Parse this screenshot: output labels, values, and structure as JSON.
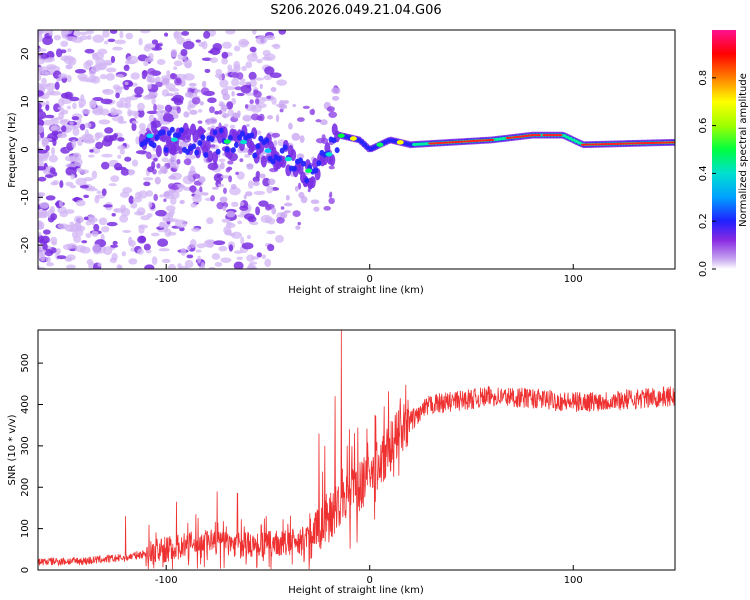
{
  "title": "S206.2026.049.21.04.G06",
  "chart_data": [
    {
      "type": "heatmap",
      "xlabel": "Height of straight line (km)",
      "ylabel": "Frequency (Hz)",
      "xlim": [
        -163,
        150
      ],
      "ylim": [
        -25,
        25
      ],
      "xticks": [
        -100,
        0,
        100
      ],
      "yticks": [
        -20,
        -10,
        0,
        10,
        20
      ],
      "colorbar": {
        "label": "Normalized spectral amplitude",
        "range": [
          0.0,
          1.0
        ],
        "ticks": [
          0.0,
          0.2,
          0.4,
          0.6,
          0.8
        ],
        "colors": [
          "#ffffff",
          "#c8a8f0",
          "#8a2be2",
          "#2020ff",
          "#00a0ff",
          "#00e0d0",
          "#00ff40",
          "#a0ff00",
          "#ffff00",
          "#ff8000",
          "#ff0000",
          "#ff1090"
        ]
      },
      "ridge": [
        {
          "x": -110,
          "f": 3.0
        },
        {
          "x": -95,
          "f": 2.0
        },
        {
          "x": -80,
          "f": 1.0
        },
        {
          "x": -65,
          "f": 2.0
        },
        {
          "x": -55,
          "f": 0.5
        },
        {
          "x": -45,
          "f": -1.0
        },
        {
          "x": -35,
          "f": -3.0
        },
        {
          "x": -28,
          "f": -5.0
        },
        {
          "x": -20,
          "f": -1.0
        },
        {
          "x": -15,
          "f": 3.0
        },
        {
          "x": -5,
          "f": 2.0
        },
        {
          "x": 0,
          "f": 0.0
        },
        {
          "x": 10,
          "f": 2.0
        },
        {
          "x": 20,
          "f": 1.0
        },
        {
          "x": 40,
          "f": 1.5
        },
        {
          "x": 60,
          "f": 2.0
        },
        {
          "x": 80,
          "f": 3.0
        },
        {
          "x": 95,
          "f": 3.0
        },
        {
          "x": 105,
          "f": 1.0
        },
        {
          "x": 150,
          "f": 1.5
        }
      ]
    },
    {
      "type": "line",
      "xlabel": "Height of straight line (km)",
      "ylabel": "SNR (10 * v/v)",
      "xlim": [
        -163,
        150
      ],
      "ylim": [
        0,
        580
      ],
      "xticks": [
        -100,
        0,
        100
      ],
      "yticks": [
        0,
        100,
        200,
        300,
        400,
        500
      ],
      "color": "#ee3030",
      "envelope": [
        {
          "x": -163,
          "y": 20
        },
        {
          "x": -140,
          "y": 22
        },
        {
          "x": -120,
          "y": 30
        },
        {
          "x": -100,
          "y": 50
        },
        {
          "x": -80,
          "y": 70
        },
        {
          "x": -60,
          "y": 60
        },
        {
          "x": -40,
          "y": 65
        },
        {
          "x": -30,
          "y": 80
        },
        {
          "x": -20,
          "y": 130
        },
        {
          "x": -10,
          "y": 190
        },
        {
          "x": 0,
          "y": 220
        },
        {
          "x": 10,
          "y": 300
        },
        {
          "x": 20,
          "y": 360
        },
        {
          "x": 30,
          "y": 400
        },
        {
          "x": 45,
          "y": 410
        },
        {
          "x": 60,
          "y": 420
        },
        {
          "x": 80,
          "y": 415
        },
        {
          "x": 100,
          "y": 405
        },
        {
          "x": 120,
          "y": 410
        },
        {
          "x": 150,
          "y": 420
        }
      ],
      "spikes": [
        {
          "x": -120,
          "y": 130
        },
        {
          "x": -95,
          "y": 165
        },
        {
          "x": -75,
          "y": 190
        },
        {
          "x": -65,
          "y": 185
        },
        {
          "x": -25,
          "y": 330
        },
        {
          "x": -22,
          "y": 300
        },
        {
          "x": -17,
          "y": 420
        },
        {
          "x": -14,
          "y": 580
        },
        {
          "x": -10,
          "y": 340
        }
      ]
    }
  ]
}
